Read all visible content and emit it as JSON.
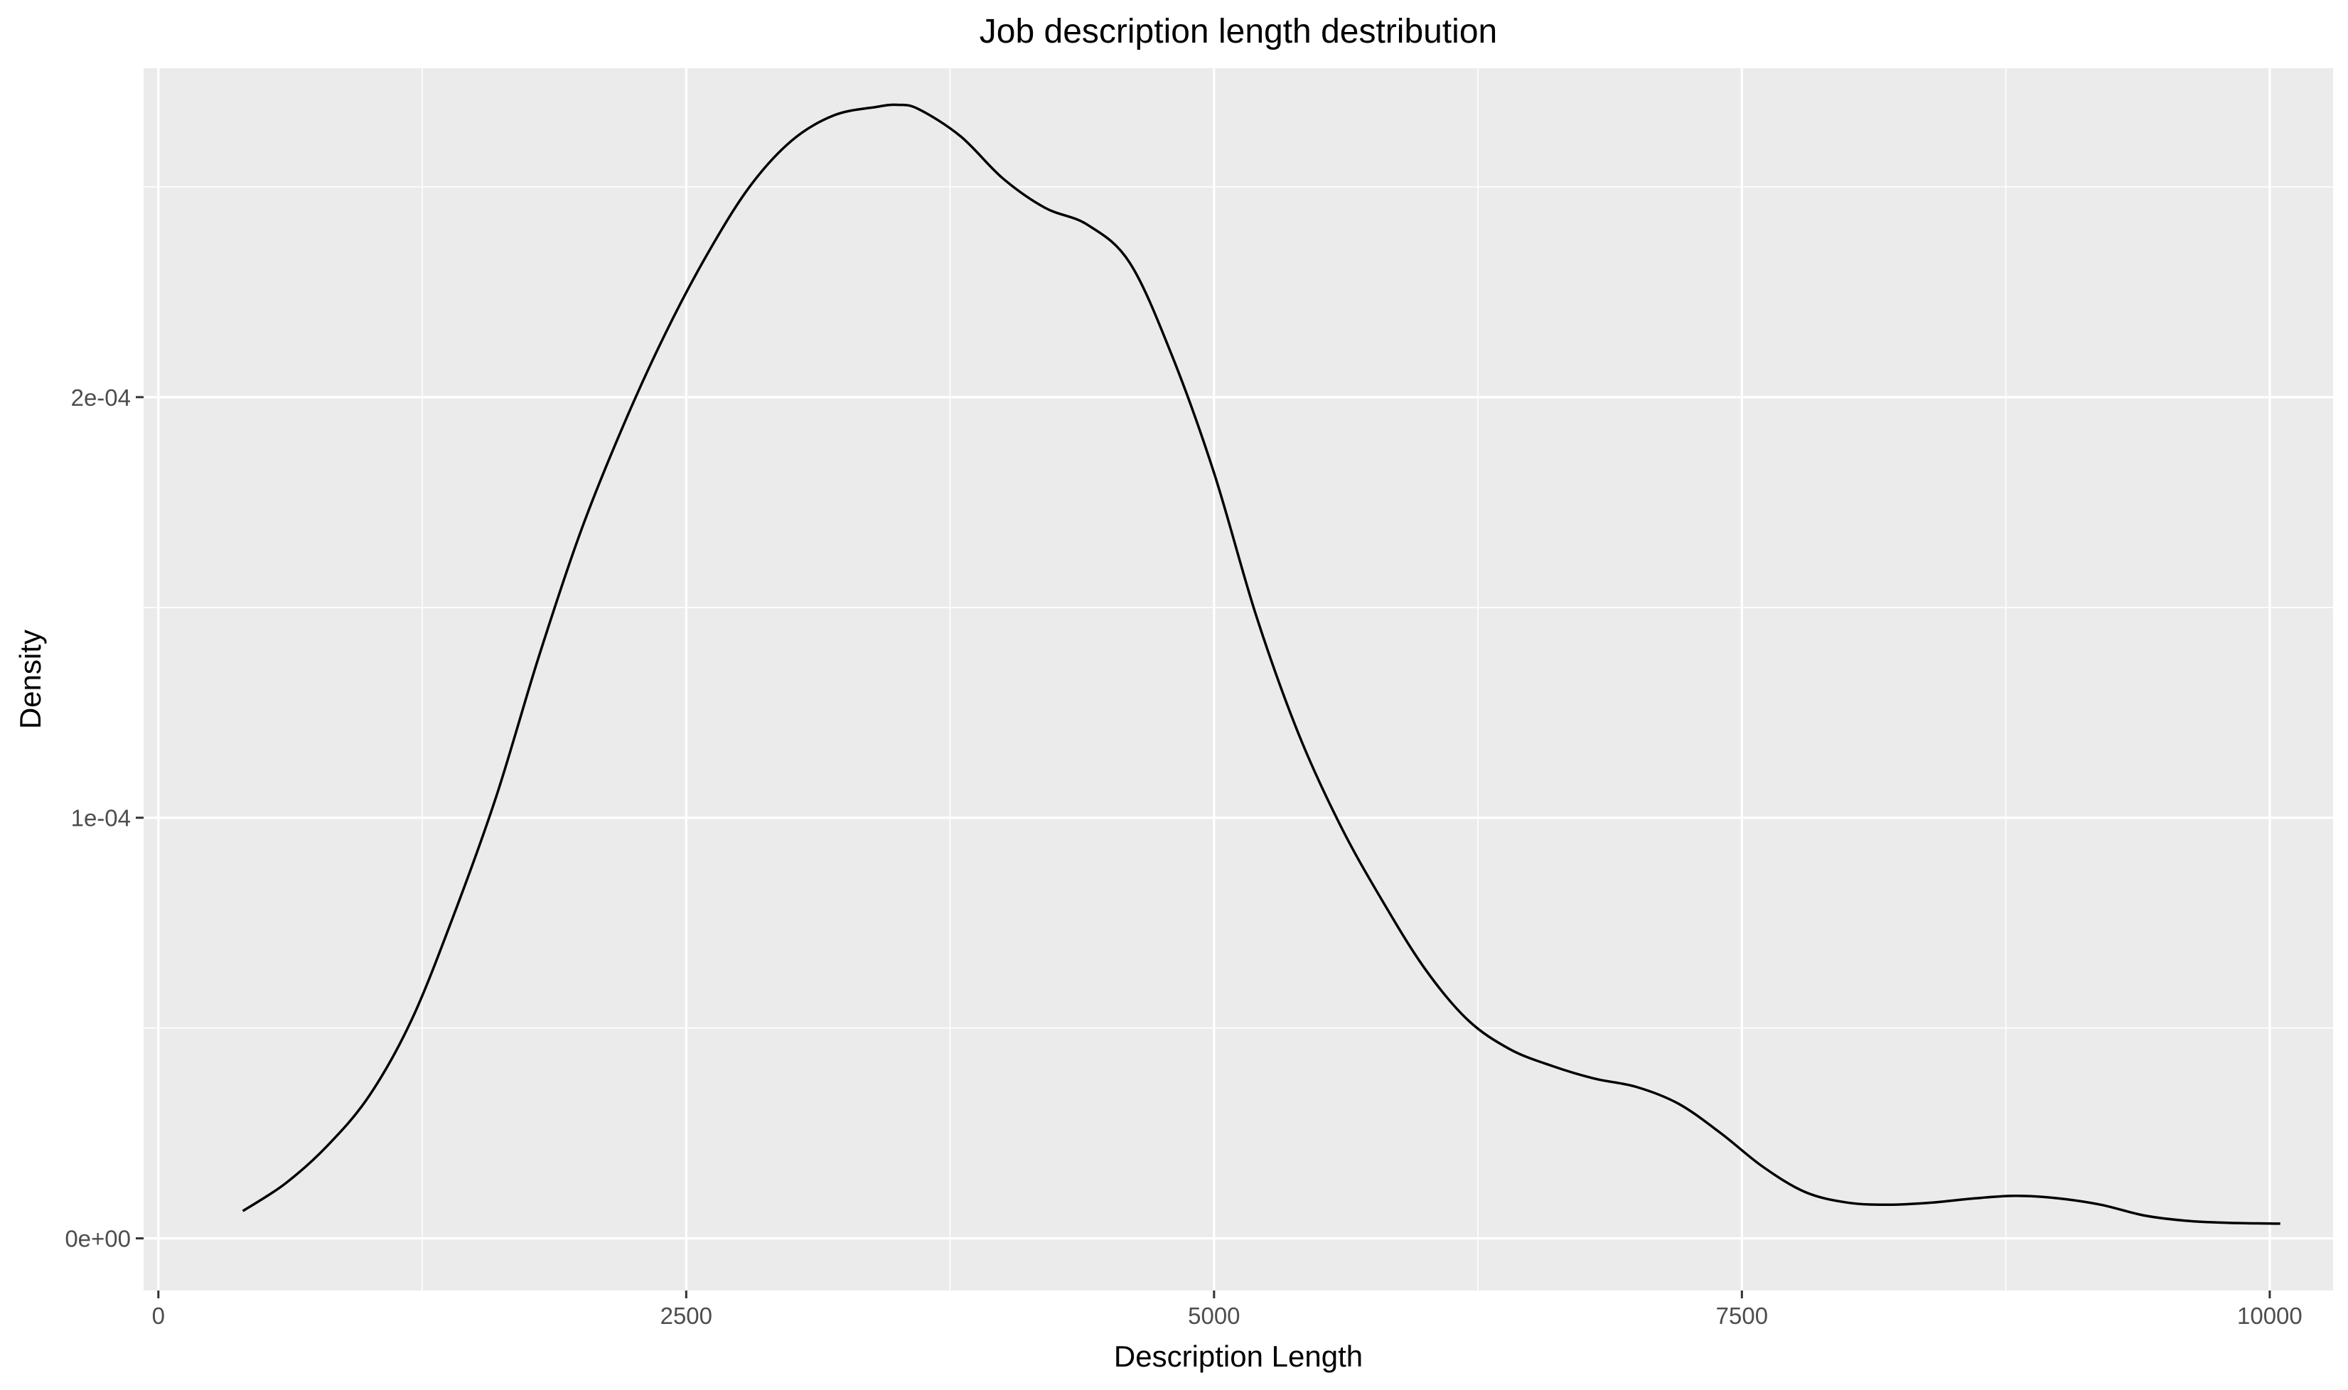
{
  "chart_data": {
    "type": "line",
    "title": "Job description length destribution",
    "xlabel": "Description Length",
    "ylabel": "Density",
    "xlim": [
      -70,
      10300
    ],
    "ylim": [
      -1.24e-05,
      0.0002782
    ],
    "x_ticks": [
      0,
      2500,
      5000,
      7500,
      10000
    ],
    "x_tick_labels": [
      "0",
      "2500",
      "5000",
      "7500",
      "10000"
    ],
    "y_ticks": [
      0,
      0.0001,
      0.0002
    ],
    "y_tick_labels": [
      "0e+00",
      "1e-04",
      "2e-04"
    ],
    "grid": true,
    "legend": "none",
    "colors": {
      "panel": "#ebebeb",
      "grid": "#ffffff",
      "line": "#000000"
    },
    "series": [
      {
        "x": [
          400,
          600,
          800,
          1000,
          1200,
          1400,
          1600,
          1800,
          2000,
          2200,
          2400,
          2600,
          2800,
          3000,
          3200,
          3400,
          3500,
          3600,
          3800,
          4000,
          4200,
          4400,
          4600,
          4800,
          5000,
          5200,
          5400,
          5600,
          5800,
          6000,
          6200,
          6400,
          6600,
          6800,
          7000,
          7200,
          7400,
          7600,
          7800,
          8000,
          8200,
          8400,
          8600,
          8800,
          9000,
          9200,
          9400,
          9600,
          9800,
          10050
        ],
        "y": [
          6.5e-06,
          1.3e-05,
          2.2e-05,
          3.4e-05,
          5.2e-05,
          7.7e-05,
          0.000105,
          0.000138,
          0.000168,
          0.000193,
          0.000215,
          0.000234,
          0.00025,
          0.000261,
          0.000267,
          0.000269,
          0.0002695,
          0.0002685,
          0.000262,
          0.000252,
          0.000245,
          0.000241,
          0.000232,
          0.00021,
          0.000182,
          0.000148,
          0.00012,
          9.8e-05,
          8e-05,
          6.4e-05,
          5.2e-05,
          4.5e-05,
          4.1e-05,
          3.8e-05,
          3.6e-05,
          3.2e-05,
          2.5e-05,
          1.7e-05,
          1.1e-05,
          8.5e-06,
          8e-06,
          8.5e-06,
          9.5e-06,
          1.01e-05,
          9.5e-06,
          8e-06,
          5.5e-06,
          4.2e-06,
          3.7e-06,
          3.5e-06
        ]
      }
    ]
  }
}
